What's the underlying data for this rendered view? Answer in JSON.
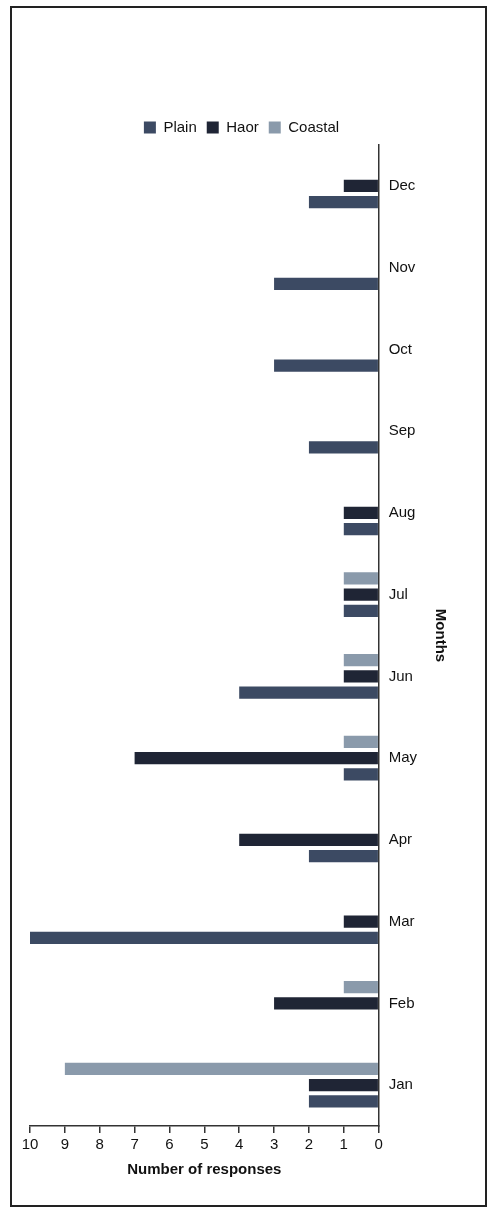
{
  "chart_data": {
    "type": "bar",
    "orientation": "horizontal",
    "xlabel": "Number of responses",
    "ylabel": "Months",
    "categories": [
      "Dec",
      "Nov",
      "Oct",
      "Sep",
      "Aug",
      "Jul",
      "Jun",
      "May",
      "Apr",
      "Mar",
      "Feb",
      "Jan"
    ],
    "series": [
      {
        "name": "Coastal",
        "color": "#8a9aab",
        "values": [
          0,
          0,
          0,
          0,
          0,
          1,
          1,
          1,
          0,
          0,
          1,
          9
        ]
      },
      {
        "name": "Haor",
        "color": "#1f2535",
        "values": [
          1,
          0,
          0,
          0,
          1,
          1,
          1,
          7,
          4,
          1,
          3,
          2
        ]
      },
      {
        "name": "Plain",
        "color": "#3c4a63",
        "values": [
          2,
          3,
          3,
          2,
          1,
          1,
          4,
          1,
          2,
          10,
          0,
          2
        ]
      }
    ],
    "xlim": [
      10,
      0
    ],
    "xticks": [
      10,
      9,
      8,
      7,
      6,
      5,
      4,
      3,
      2,
      1,
      0
    ],
    "grid": false,
    "legend": "top"
  }
}
